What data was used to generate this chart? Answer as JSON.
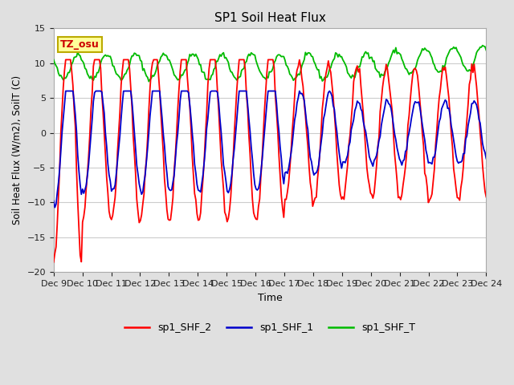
{
  "title": "SP1 Soil Heat Flux",
  "xlabel": "Time",
  "ylabel": "Soil Heat Flux (W/m2), SoilT (C)",
  "ylim": [
    -20,
    15
  ],
  "xtick_labels": [
    "Dec 9",
    "Dec 10",
    "Dec 11",
    "Dec 12",
    "Dec 13",
    "Dec 14",
    "Dec 15",
    "Dec 16",
    "Dec 17",
    "Dec 18",
    "Dec 19",
    "Dec 20",
    "Dec 21",
    "Dec 22",
    "Dec 23",
    "Dec 24"
  ],
  "bg_color": "#e0e0e0",
  "plot_bg_color": "#e8e8e8",
  "grid_color": "#ffffff",
  "line_colors": {
    "sp1_SHF_2": "#ff0000",
    "sp1_SHF_1": "#0000cc",
    "sp1_SHF_T": "#00bb00"
  },
  "tz_label": "TZ_osu",
  "tz_box_facecolor": "#ffff99",
  "tz_box_edgecolor": "#bbaa00",
  "legend_labels": [
    "sp1_SHF_2",
    "sp1_SHF_1",
    "sp1_SHF_T"
  ],
  "n_days": 15,
  "n_labels": 16
}
